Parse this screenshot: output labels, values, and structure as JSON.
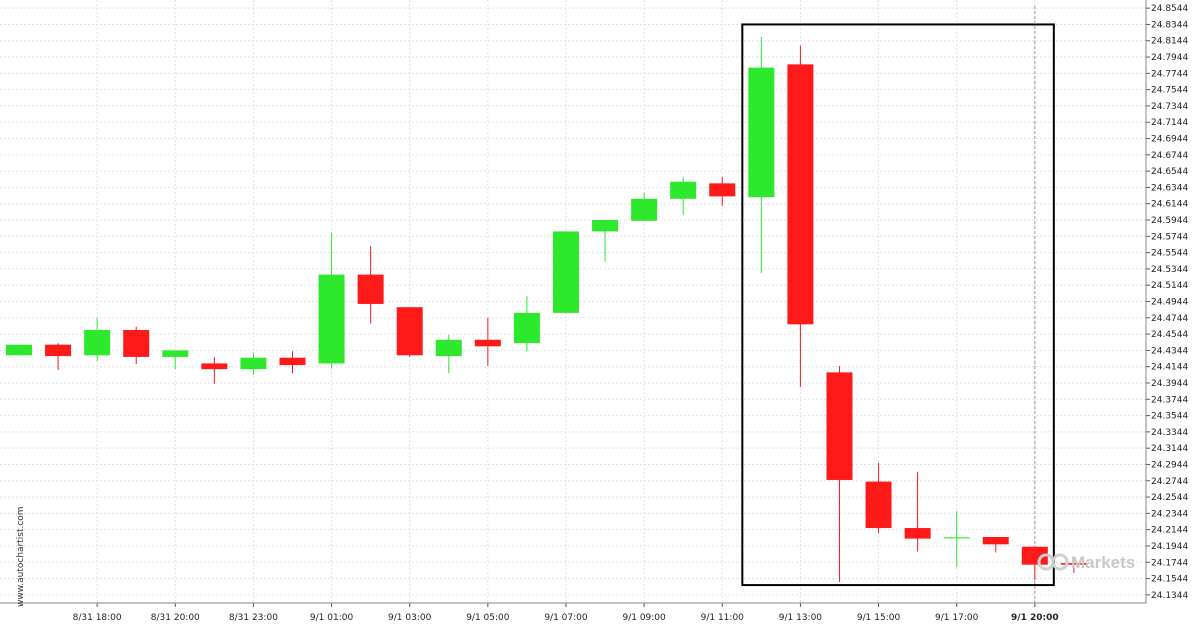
{
  "chart_data": {
    "type": "candlestick",
    "title": "",
    "xlabel": "",
    "ylabel": "",
    "ylim": [
      24.1244,
      24.8644
    ],
    "grid": true,
    "y_ticks": [
      "24.8544",
      "24.8344",
      "24.8144",
      "24.7944",
      "24.7744",
      "24.7544",
      "24.7344",
      "24.7144",
      "24.6944",
      "24.6744",
      "24.6544",
      "24.6344",
      "24.6144",
      "24.5944",
      "24.5744",
      "24.5544",
      "24.5344",
      "24.5144",
      "24.4944",
      "24.4744",
      "24.4544",
      "24.4344",
      "24.4144",
      "24.3944",
      "24.3744",
      "24.3544",
      "24.3344",
      "24.3144",
      "24.2944",
      "24.2744",
      "24.2544",
      "24.2344",
      "24.2144",
      "24.1944",
      "24.1744",
      "24.1544",
      "24.1344"
    ],
    "x_ticks": [
      {
        "label": "8/31 18:00",
        "index": 2
      },
      {
        "label": "8/31 20:00",
        "index": 4
      },
      {
        "label": "8/31 23:00",
        "index": 6
      },
      {
        "label": "9/1 01:00",
        "index": 8
      },
      {
        "label": "9/1 03:00",
        "index": 10
      },
      {
        "label": "9/1 05:00",
        "index": 12
      },
      {
        "label": "9/1 07:00",
        "index": 14
      },
      {
        "label": "9/1 09:00",
        "index": 16
      },
      {
        "label": "9/1 11:00",
        "index": 18
      },
      {
        "label": "9/1 13:00",
        "index": 20
      },
      {
        "label": "9/1 15:00",
        "index": 22
      },
      {
        "label": "9/1 17:00",
        "index": 24
      },
      {
        "label": "9/1 20:00",
        "index": 26,
        "highlight": true
      }
    ],
    "candles": [
      {
        "o": 24.4284,
        "h": 24.4414,
        "l": 24.4284,
        "c": 24.4414
      },
      {
        "o": 24.4414,
        "h": 24.4434,
        "l": 24.4104,
        "c": 24.4274
      },
      {
        "o": 24.4284,
        "h": 24.4744,
        "l": 24.4214,
        "c": 24.4594
      },
      {
        "o": 24.4594,
        "h": 24.4634,
        "l": 24.4174,
        "c": 24.4264
      },
      {
        "o": 24.4264,
        "h": 24.4344,
        "l": 24.4114,
        "c": 24.4344
      },
      {
        "o": 24.4184,
        "h": 24.4264,
        "l": 24.3934,
        "c": 24.4114
      },
      {
        "o": 24.4114,
        "h": 24.4314,
        "l": 24.4044,
        "c": 24.4254
      },
      {
        "o": 24.4254,
        "h": 24.4334,
        "l": 24.4064,
        "c": 24.4164
      },
      {
        "o": 24.4184,
        "h": 24.5784,
        "l": 24.4124,
        "c": 24.5274
      },
      {
        "o": 24.5274,
        "h": 24.5624,
        "l": 24.4674,
        "c": 24.4914
      },
      {
        "o": 24.4874,
        "h": 24.4874,
        "l": 24.4264,
        "c": 24.4284
      },
      {
        "o": 24.4274,
        "h": 24.4534,
        "l": 24.4064,
        "c": 24.4474
      },
      {
        "o": 24.4474,
        "h": 24.4744,
        "l": 24.4154,
        "c": 24.4394
      },
      {
        "o": 24.4434,
        "h": 24.5014,
        "l": 24.4334,
        "c": 24.4804
      },
      {
        "o": 24.4804,
        "h": 24.5804,
        "l": 24.4794,
        "c": 24.5804
      },
      {
        "o": 24.5804,
        "h": 24.5944,
        "l": 24.5434,
        "c": 24.5944
      },
      {
        "o": 24.5934,
        "h": 24.6284,
        "l": 24.5934,
        "c": 24.6204
      },
      {
        "o": 24.6204,
        "h": 24.6474,
        "l": 24.6004,
        "c": 24.6414
      },
      {
        "o": 24.6394,
        "h": 24.6474,
        "l": 24.6114,
        "c": 24.6234
      },
      {
        "o": 24.6224,
        "h": 24.8194,
        "l": 24.5294,
        "c": 24.7814
      },
      {
        "o": 24.7854,
        "h": 24.8084,
        "l": 24.3894,
        "c": 24.4664
      },
      {
        "o": 24.4074,
        "h": 24.4154,
        "l": 24.1504,
        "c": 24.2754
      },
      {
        "o": 24.2734,
        "h": 24.2964,
        "l": 24.2104,
        "c": 24.2164
      },
      {
        "o": 24.2164,
        "h": 24.2854,
        "l": 24.1874,
        "c": 24.2034
      },
      {
        "o": 24.2044,
        "h": 24.2374,
        "l": 24.1684,
        "c": 24.2044
      },
      {
        "o": 24.2054,
        "h": 24.2054,
        "l": 24.1864,
        "c": 24.1964
      },
      {
        "o": 24.1934,
        "h": 24.1934,
        "l": 24.1524,
        "c": 24.1714
      },
      {
        "o": 24.1734,
        "h": 24.1774,
        "l": 24.1614,
        "c": 24.1714
      }
    ],
    "pattern_box": {
      "from_index": 19,
      "to_index": 26,
      "high": 24.8344,
      "low": 24.1464
    },
    "current_time_index": 26,
    "colors": {
      "up": "#2ee82e",
      "down": "#ff1a1a",
      "grid": "#e2e2e2",
      "box": "#000000",
      "current_time_line": "#999999"
    }
  },
  "watermark_text": "www.autochartist.com",
  "brand_logo_text": "Markets"
}
